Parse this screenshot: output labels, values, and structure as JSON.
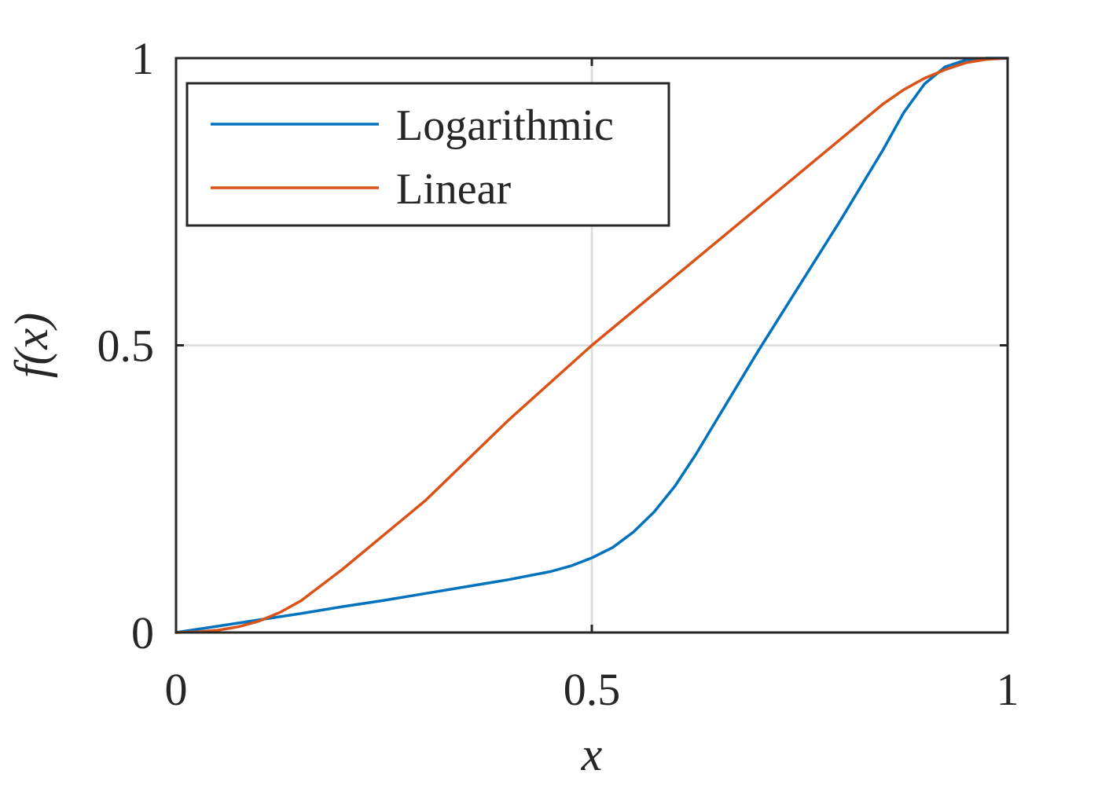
{
  "chart_data": {
    "type": "line",
    "xlabel": "x",
    "ylabel": "f(x)",
    "xlim": [
      0,
      1
    ],
    "ylim": [
      0,
      1
    ],
    "xticks": [
      0,
      0.5,
      1
    ],
    "xtick_labels": [
      "0",
      "0.5",
      "1"
    ],
    "yticks": [
      0,
      0.5,
      1
    ],
    "ytick_labels": [
      "0",
      "0.5",
      "1"
    ],
    "grid": true,
    "legend_position": "top-left",
    "series": [
      {
        "name": "Logarithmic",
        "color": "#0072BD",
        "points": [
          [
            0.0,
            0.0
          ],
          [
            0.05,
            0.011
          ],
          [
            0.1,
            0.022
          ],
          [
            0.15,
            0.033
          ],
          [
            0.2,
            0.045
          ],
          [
            0.25,
            0.056
          ],
          [
            0.3,
            0.068
          ],
          [
            0.35,
            0.08
          ],
          [
            0.4,
            0.092
          ],
          [
            0.45,
            0.106
          ],
          [
            0.475,
            0.116
          ],
          [
            0.5,
            0.13
          ],
          [
            0.525,
            0.148
          ],
          [
            0.55,
            0.175
          ],
          [
            0.575,
            0.21
          ],
          [
            0.6,
            0.255
          ],
          [
            0.625,
            0.31
          ],
          [
            0.65,
            0.37
          ],
          [
            0.7,
            0.49
          ],
          [
            0.75,
            0.605
          ],
          [
            0.8,
            0.72
          ],
          [
            0.85,
            0.84
          ],
          [
            0.875,
            0.905
          ],
          [
            0.9,
            0.955
          ],
          [
            0.925,
            0.985
          ],
          [
            0.95,
            0.997
          ],
          [
            0.975,
            1.0
          ],
          [
            1.0,
            1.0
          ]
        ]
      },
      {
        "name": "Linear",
        "color": "#D95319",
        "points": [
          [
            0.0,
            0.0
          ],
          [
            0.025,
            0.001
          ],
          [
            0.05,
            0.004
          ],
          [
            0.075,
            0.01
          ],
          [
            0.1,
            0.02
          ],
          [
            0.125,
            0.035
          ],
          [
            0.15,
            0.055
          ],
          [
            0.2,
            0.11
          ],
          [
            0.3,
            0.23
          ],
          [
            0.4,
            0.37
          ],
          [
            0.5,
            0.5
          ],
          [
            0.6,
            0.62
          ],
          [
            0.7,
            0.74
          ],
          [
            0.8,
            0.86
          ],
          [
            0.85,
            0.92
          ],
          [
            0.875,
            0.945
          ],
          [
            0.9,
            0.965
          ],
          [
            0.925,
            0.98
          ],
          [
            0.95,
            0.992
          ],
          [
            0.975,
            0.998
          ],
          [
            1.0,
            1.0
          ]
        ]
      }
    ]
  }
}
